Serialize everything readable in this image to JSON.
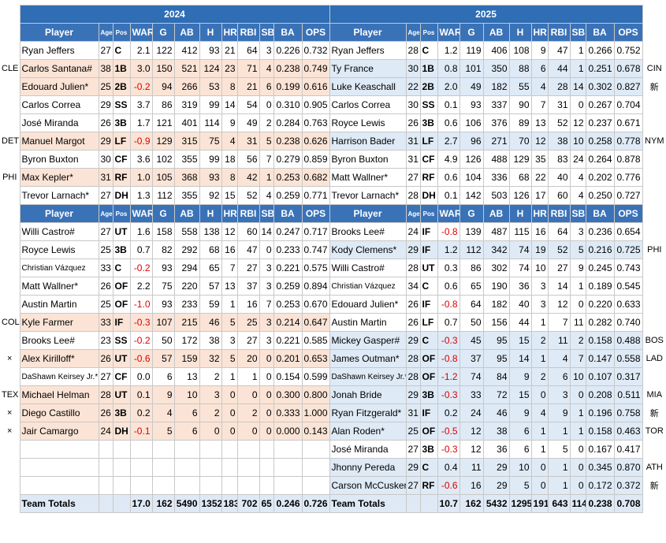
{
  "years": [
    {
      "year": "2024",
      "highlight_color": "#fbe4d6",
      "header": [
        "Player",
        "Age",
        "Pos",
        "WAR",
        "G",
        "AB",
        "H",
        "HR",
        "RBI",
        "SB",
        "BA",
        "OPS"
      ],
      "starters": [
        [
          "Ryan Jeffers",
          "27",
          "C",
          "2.1",
          "122",
          "412",
          "93",
          "21",
          "64",
          "3",
          "0.226",
          "0.732"
        ],
        [
          "Carlos Santana#",
          "38",
          "1B",
          "3.0",
          "150",
          "521",
          "124",
          "23",
          "71",
          "4",
          "0.238",
          "0.749"
        ],
        [
          "Edouard Julien*",
          "25",
          "2B",
          "-0.2",
          "94",
          "266",
          "53",
          "8",
          "21",
          "6",
          "0.199",
          "0.616"
        ],
        [
          "Carlos Correa",
          "29",
          "SS",
          "3.7",
          "86",
          "319",
          "99",
          "14",
          "54",
          "0",
          "0.310",
          "0.905"
        ],
        [
          "José Miranda",
          "26",
          "3B",
          "1.7",
          "121",
          "401",
          "114",
          "9",
          "49",
          "2",
          "0.284",
          "0.763"
        ],
        [
          "Manuel Margot",
          "29",
          "LF",
          "-0.9",
          "129",
          "315",
          "75",
          "4",
          "31",
          "5",
          "0.238",
          "0.626"
        ],
        [
          "Byron Buxton",
          "30",
          "CF",
          "3.6",
          "102",
          "355",
          "99",
          "18",
          "56",
          "7",
          "0.279",
          "0.859"
        ],
        [
          "Max Kepler*",
          "31",
          "RF",
          "1.0",
          "105",
          "368",
          "93",
          "8",
          "42",
          "1",
          "0.253",
          "0.682"
        ],
        [
          "Trevor Larnach*",
          "27",
          "DH",
          "1.3",
          "112",
          "355",
          "92",
          "15",
          "52",
          "4",
          "0.259",
          "0.771"
        ]
      ],
      "bench": [
        [
          "Willi Castro#",
          "27",
          "UT",
          "1.6",
          "158",
          "558",
          "138",
          "12",
          "60",
          "14",
          "0.247",
          "0.717"
        ],
        [
          "Royce Lewis",
          "25",
          "3B",
          "0.7",
          "82",
          "292",
          "68",
          "16",
          "47",
          "0",
          "0.233",
          "0.747"
        ],
        [
          "Christian Vázquez",
          "33",
          "C",
          "-0.2",
          "93",
          "294",
          "65",
          "7",
          "27",
          "3",
          "0.221",
          "0.575"
        ],
        [
          "Matt Wallner*",
          "26",
          "OF",
          "2.2",
          "75",
          "220",
          "57",
          "13",
          "37",
          "3",
          "0.259",
          "0.894"
        ],
        [
          "Austin Martin",
          "25",
          "OF",
          "-1.0",
          "93",
          "233",
          "59",
          "1",
          "16",
          "7",
          "0.253",
          "0.670"
        ],
        [
          "Kyle Farmer",
          "33",
          "IF",
          "-0.3",
          "107",
          "215",
          "46",
          "5",
          "25",
          "3",
          "0.214",
          "0.647"
        ],
        [
          "Brooks Lee#",
          "23",
          "SS",
          "-0.2",
          "50",
          "172",
          "38",
          "3",
          "27",
          "3",
          "0.221",
          "0.585"
        ],
        [
          "Alex Kirilloff*",
          "26",
          "UT",
          "-0.6",
          "57",
          "159",
          "32",
          "5",
          "20",
          "0",
          "0.201",
          "0.653"
        ],
        [
          "DaShawn Keirsey Jr.*",
          "27",
          "CF",
          "0.0",
          "6",
          "13",
          "2",
          "1",
          "1",
          "0",
          "0.154",
          "0.599"
        ],
        [
          "Michael Helman",
          "28",
          "UT",
          "0.1",
          "9",
          "10",
          "3",
          "0",
          "0",
          "0",
          "0.300",
          "0.800"
        ],
        [
          "Diego Castillo",
          "26",
          "3B",
          "0.2",
          "4",
          "6",
          "2",
          "0",
          "2",
          "0",
          "0.333",
          "1.000"
        ],
        [
          "Jair Camargo",
          "24",
          "DH",
          "-0.1",
          "5",
          "6",
          "0",
          "0",
          "0",
          "0",
          "0.000",
          "0.143"
        ]
      ],
      "totals": [
        "Team Totals",
        null,
        null,
        "17.0",
        "162",
        "5490",
        "1352",
        "183",
        "702",
        "65",
        "0.246",
        "0.726"
      ],
      "starter_highlights": [
        1,
        2,
        5,
        7
      ],
      "bench_highlights": [
        5,
        7,
        9,
        10,
        11
      ]
    },
    {
      "year": "2025",
      "highlight_color": "#deeaf6",
      "header": [
        "Player",
        "Age",
        "Pos",
        "WAR",
        "G",
        "AB",
        "H",
        "HR",
        "RBI",
        "SB",
        "BA",
        "OPS"
      ],
      "starters": [
        [
          "Ryan Jeffers",
          "28",
          "C",
          "1.2",
          "119",
          "406",
          "108",
          "9",
          "47",
          "1",
          "0.266",
          "0.752"
        ],
        [
          "Ty France",
          "30",
          "1B",
          "0.8",
          "101",
          "350",
          "88",
          "6",
          "44",
          "1",
          "0.251",
          "0.678"
        ],
        [
          "Luke Keaschall",
          "22",
          "2B",
          "2.0",
          "49",
          "182",
          "55",
          "4",
          "28",
          "14",
          "0.302",
          "0.827"
        ],
        [
          "Carlos Correa",
          "30",
          "SS",
          "0.1",
          "93",
          "337",
          "90",
          "7",
          "31",
          "0",
          "0.267",
          "0.704"
        ],
        [
          "Royce Lewis",
          "26",
          "3B",
          "0.6",
          "106",
          "376",
          "89",
          "13",
          "52",
          "12",
          "0.237",
          "0.671"
        ],
        [
          "Harrison Bader",
          "31",
          "LF",
          "2.7",
          "96",
          "271",
          "70",
          "12",
          "38",
          "10",
          "0.258",
          "0.778"
        ],
        [
          "Byron Buxton",
          "31",
          "CF",
          "4.9",
          "126",
          "488",
          "129",
          "35",
          "83",
          "24",
          "0.264",
          "0.878"
        ],
        [
          "Matt Wallner*",
          "27",
          "RF",
          "0.6",
          "104",
          "336",
          "68",
          "22",
          "40",
          "4",
          "0.202",
          "0.776"
        ],
        [
          "Trevor Larnach*",
          "28",
          "DH",
          "0.1",
          "142",
          "503",
          "126",
          "17",
          "60",
          "4",
          "0.250",
          "0.727"
        ]
      ],
      "bench": [
        [
          "Brooks Lee#",
          "24",
          "IF",
          "-0.8",
          "139",
          "487",
          "115",
          "16",
          "64",
          "3",
          "0.236",
          "0.654"
        ],
        [
          "Kody Clemens*",
          "29",
          "IF",
          "1.2",
          "112",
          "342",
          "74",
          "19",
          "52",
          "5",
          "0.216",
          "0.725"
        ],
        [
          "Willi Castro#",
          "28",
          "UT",
          "0.3",
          "86",
          "302",
          "74",
          "10",
          "27",
          "9",
          "0.245",
          "0.743"
        ],
        [
          "Christian Vázquez",
          "34",
          "C",
          "0.6",
          "65",
          "190",
          "36",
          "3",
          "14",
          "1",
          "0.189",
          "0.545"
        ],
        [
          "Edouard Julien*",
          "26",
          "IF",
          "-0.8",
          "64",
          "182",
          "40",
          "3",
          "12",
          "0",
          "0.220",
          "0.633"
        ],
        [
          "Austin Martin",
          "26",
          "LF",
          "0.7",
          "50",
          "156",
          "44",
          "1",
          "7",
          "11",
          "0.282",
          "0.740"
        ],
        [
          "Mickey Gasper#",
          "29",
          "C",
          "-0.3",
          "45",
          "95",
          "15",
          "2",
          "11",
          "2",
          "0.158",
          "0.488"
        ],
        [
          "James Outman*",
          "28",
          "OF",
          "-0.8",
          "37",
          "95",
          "14",
          "1",
          "4",
          "7",
          "0.147",
          "0.558"
        ],
        [
          "DaShawn Keirsey Jr.*",
          "28",
          "OF",
          "-1.2",
          "74",
          "84",
          "9",
          "2",
          "6",
          "10",
          "0.107",
          "0.317"
        ],
        [
          "Jonah Bride",
          "29",
          "3B",
          "-0.3",
          "33",
          "72",
          "15",
          "0",
          "3",
          "0",
          "0.208",
          "0.511"
        ],
        [
          "Ryan Fitzgerald*",
          "31",
          "IF",
          "0.2",
          "24",
          "46",
          "9",
          "4",
          "9",
          "1",
          "0.196",
          "0.758"
        ],
        [
          "Alan Roden*",
          "25",
          "OF",
          "-0.5",
          "12",
          "38",
          "6",
          "1",
          "1",
          "1",
          "0.158",
          "0.463"
        ],
        [
          "José Miranda",
          "27",
          "3B",
          "-0.3",
          "12",
          "36",
          "6",
          "1",
          "5",
          "0",
          "0.167",
          "0.417"
        ],
        [
          "Jhonny Pereda",
          "29",
          "C",
          "0.4",
          "11",
          "29",
          "10",
          "0",
          "1",
          "0",
          "0.345",
          "0.870"
        ],
        [
          "Carson McCusker",
          "27",
          "RF",
          "-0.6",
          "16",
          "29",
          "5",
          "0",
          "1",
          "0",
          "0.172",
          "0.372"
        ]
      ],
      "totals": [
        "Team Totals",
        null,
        null,
        "10.7",
        "162",
        "5432",
        "1295",
        "191",
        "643",
        "114",
        "0.238",
        "0.708"
      ],
      "starter_highlights": [
        1,
        2,
        5
      ],
      "bench_highlights": [
        1,
        6,
        7,
        8,
        9,
        10,
        11,
        13,
        14
      ]
    }
  ],
  "notes_left": {
    "starters": [
      null,
      "CLE",
      null,
      null,
      null,
      "DET",
      null,
      "PHI",
      null
    ],
    "bench": [
      null,
      null,
      null,
      null,
      null,
      "COL",
      null,
      "×",
      null,
      "TEX",
      "×",
      "×",
      null,
      null,
      null
    ]
  },
  "notes_right": {
    "starters": [
      null,
      "CIN",
      "新",
      null,
      null,
      "NYM",
      null,
      null,
      null
    ],
    "bench": [
      null,
      "PHI",
      null,
      null,
      null,
      null,
      "BOS",
      "LAD",
      null,
      "MIA",
      "新",
      "TOR",
      null,
      "ATH",
      "新"
    ]
  }
}
